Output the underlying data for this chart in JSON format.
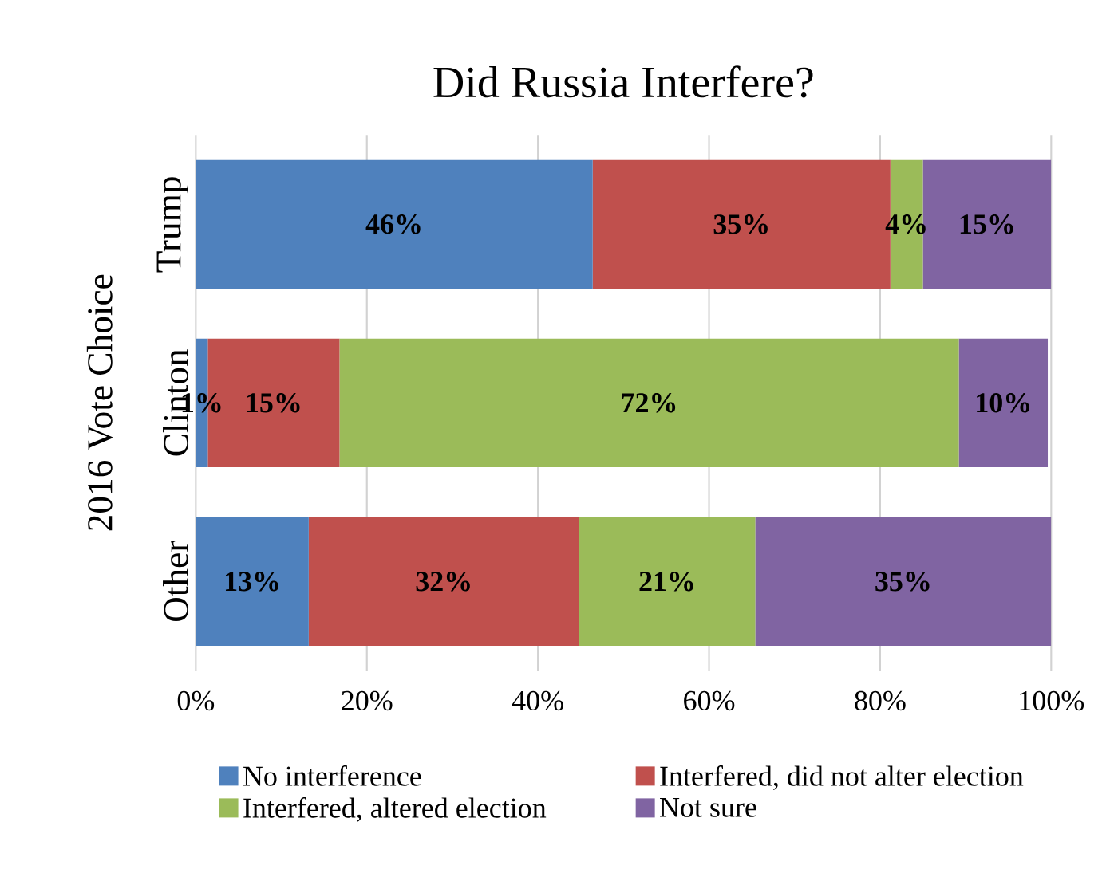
{
  "chart_data": {
    "type": "bar",
    "orientation": "horizontal",
    "stacked": true,
    "title": "Did Russia Interfere?",
    "ylabel": "2016 Vote Choice",
    "categories": [
      "Trump",
      "Clinton",
      "Other"
    ],
    "series": [
      {
        "name": "No interference",
        "color": "#4f81bd",
        "values": [
          46.4,
          1.4,
          13.2
        ],
        "value_labels": [
          "46%",
          "1%",
          "13%"
        ]
      },
      {
        "name": "Interfered, did not alter election",
        "color": "#c0504d",
        "values": [
          34.8,
          15.4,
          31.6
        ],
        "value_labels": [
          "35%",
          "15%",
          "32%"
        ]
      },
      {
        "name": "Interfered, altered election",
        "color": "#9bbb59",
        "values": [
          3.8,
          72.4,
          20.6
        ],
        "value_labels": [
          "4%",
          "72%",
          "21%"
        ]
      },
      {
        "name": "Not sure",
        "color": "#8064a2",
        "values": [
          15.0,
          10.4,
          34.6
        ],
        "value_labels": [
          "15%",
          "10%",
          "35%"
        ]
      }
    ],
    "xlim": [
      0,
      100
    ],
    "xticks": [
      {
        "value": 0,
        "label": "0%"
      },
      {
        "value": 20,
        "label": "20%"
      },
      {
        "value": 40,
        "label": "40%"
      },
      {
        "value": 60,
        "label": "60%"
      },
      {
        "value": 80,
        "label": "80%"
      },
      {
        "value": 100,
        "label": "100%"
      }
    ],
    "grid": "x",
    "legend": "bottom"
  }
}
